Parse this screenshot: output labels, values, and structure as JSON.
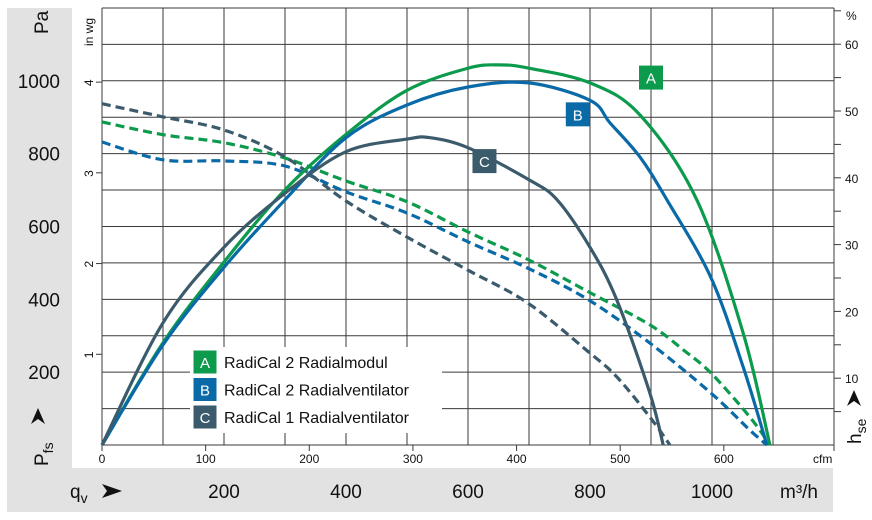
{
  "chart_data": {
    "type": "line",
    "axes": {
      "left_primary": {
        "label": "Pa",
        "ticks": [
          200,
          400,
          600,
          800,
          1000
        ],
        "range": [
          0,
          1200
        ],
        "title": "P",
        "title_sub": "fs"
      },
      "left_secondary": {
        "label": "in wg",
        "ticks": [
          1,
          2,
          3,
          4
        ]
      },
      "right": {
        "label": "%",
        "ticks": [
          10,
          20,
          30,
          40,
          50,
          60
        ],
        "minor_step": 5,
        "title": "h",
        "title_sub": "se"
      },
      "bottom_primary": {
        "label": "m³/h",
        "ticks": [
          200,
          400,
          600,
          800,
          1000
        ],
        "range": [
          0,
          1200
        ],
        "title": "q",
        "title_sub": "v"
      },
      "bottom_secondary": {
        "label": "cfm",
        "ticks": [
          0,
          100,
          200,
          300,
          400,
          500,
          600
        ]
      }
    },
    "grid": true,
    "legend_position": "bottom-left",
    "legend": [
      {
        "key": "A",
        "label": "RadiCal 2 Radialmodul",
        "color": "#0c9b4c"
      },
      {
        "key": "B",
        "label": "RadiCal 2 Radialventilator",
        "color": "#0a6aa8"
      },
      {
        "key": "C",
        "label": "RadiCal 1 Radialventilator",
        "color": "#3b5b6c"
      }
    ],
    "series": [
      {
        "key": "A",
        "kind": "pressure",
        "axis": "Pa",
        "style": "dashed",
        "color": "#0c9b4c",
        "points": [
          [
            0,
            887
          ],
          [
            100,
            852
          ],
          [
            200,
            830
          ],
          [
            300,
            788
          ],
          [
            400,
            725
          ],
          [
            500,
            668
          ],
          [
            600,
            585
          ],
          [
            700,
            508
          ],
          [
            798,
            420
          ],
          [
            898,
            330
          ],
          [
            953,
            261
          ],
          [
            998,
            198
          ],
          [
            1062,
            77
          ],
          [
            1095,
            0
          ]
        ]
      },
      {
        "key": "B",
        "kind": "pressure",
        "axis": "Pa",
        "style": "dashed",
        "color": "#0a6aa8",
        "points": [
          [
            0,
            832
          ],
          [
            100,
            783
          ],
          [
            200,
            780
          ],
          [
            300,
            766
          ],
          [
            400,
            695
          ],
          [
            500,
            637
          ],
          [
            600,
            558
          ],
          [
            700,
            484
          ],
          [
            798,
            398
          ],
          [
            898,
            280
          ],
          [
            998,
            143
          ],
          [
            1062,
            41
          ],
          [
            1090,
            0
          ]
        ]
      },
      {
        "key": "C",
        "kind": "pressure",
        "axis": "Pa",
        "style": "dashed",
        "color": "#3b5b6c",
        "points": [
          [
            0,
            937
          ],
          [
            100,
            901
          ],
          [
            200,
            865
          ],
          [
            300,
            791
          ],
          [
            400,
            670
          ],
          [
            500,
            571
          ],
          [
            600,
            480
          ],
          [
            698,
            390
          ],
          [
            798,
            255
          ],
          [
            844,
            187
          ],
          [
            898,
            77
          ],
          [
            931,
            0
          ]
        ]
      },
      {
        "key": "A",
        "kind": "efficiency",
        "axis": "%",
        "style": "solid",
        "color": "#0c9b4c",
        "points": [
          [
            0,
            0
          ],
          [
            100,
            15.3
          ],
          [
            200,
            27.4
          ],
          [
            300,
            38.2
          ],
          [
            400,
            46.5
          ],
          [
            500,
            53.1
          ],
          [
            600,
            56.4
          ],
          [
            652,
            56.9
          ],
          [
            700,
            56.4
          ],
          [
            800,
            54.2
          ],
          [
            882,
            49.4
          ],
          [
            975,
            36.7
          ],
          [
            1051,
            16.8
          ],
          [
            1095,
            0
          ]
        ]
      },
      {
        "key": "B",
        "kind": "efficiency",
        "axis": "%",
        "style": "solid",
        "color": "#0a6aa8",
        "points": [
          [
            0,
            0
          ],
          [
            100,
            15
          ],
          [
            200,
            26.6
          ],
          [
            300,
            36.7
          ],
          [
            400,
            46
          ],
          [
            500,
            50.9
          ],
          [
            600,
            53.6
          ],
          [
            700,
            54.2
          ],
          [
            800,
            51.6
          ],
          [
            833,
            48.2
          ],
          [
            882,
            43.1
          ],
          [
            926,
            36.7
          ],
          [
            998,
            25.1
          ],
          [
            1051,
            11.7
          ],
          [
            1090,
            0
          ]
        ]
      },
      {
        "key": "C",
        "kind": "efficiency",
        "axis": "%",
        "style": "solid",
        "color": "#3b5b6c",
        "points": [
          [
            0,
            0
          ],
          [
            100,
            18.3
          ],
          [
            200,
            29.6
          ],
          [
            300,
            37.7
          ],
          [
            400,
            43.9
          ],
          [
            500,
            45.8
          ],
          [
            538,
            46
          ],
          [
            600,
            44.5
          ],
          [
            700,
            39.7
          ],
          [
            746,
            36.7
          ],
          [
            800,
            29.6
          ],
          [
            844,
            21.7
          ],
          [
            898,
            7.8
          ],
          [
            920,
            0
          ]
        ]
      }
    ],
    "annotations": [
      {
        "key": "A",
        "color": "#0c9b4c",
        "at": [
          900,
          55
        ]
      },
      {
        "key": "B",
        "color": "#0a6aa8",
        "at": [
          780,
          49.5
        ]
      },
      {
        "key": "C",
        "color": "#3b5b6c",
        "at": [
          627,
          42.5
        ]
      }
    ]
  }
}
